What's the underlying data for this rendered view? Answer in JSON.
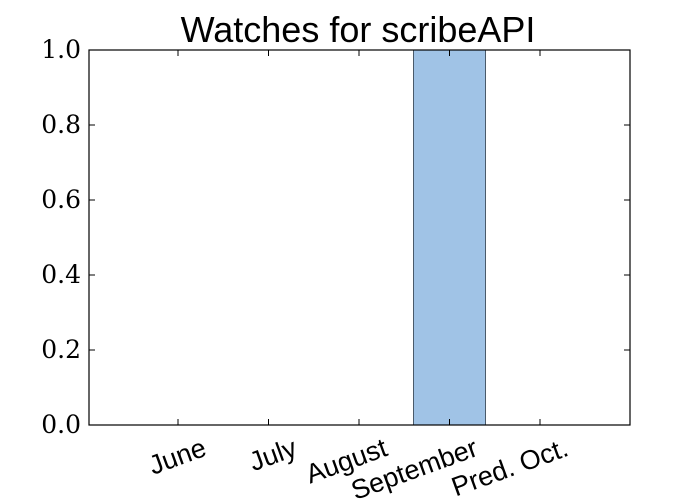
{
  "chart_data": {
    "type": "bar",
    "title": "Watches for scribeAPI",
    "categories": [
      "June",
      "July",
      "August",
      "September",
      "Pred. Oct."
    ],
    "values": [
      0,
      0,
      0,
      1,
      0
    ],
    "ylim": [
      0,
      1
    ],
    "yticks": [
      "0.0",
      "0.2",
      "0.4",
      "0.6",
      "0.8",
      "1.0"
    ],
    "xlabel": "",
    "ylabel": "",
    "grid": false,
    "bar_color": "#a0c3e6",
    "bar_edge_color": "#4a5a6a"
  }
}
